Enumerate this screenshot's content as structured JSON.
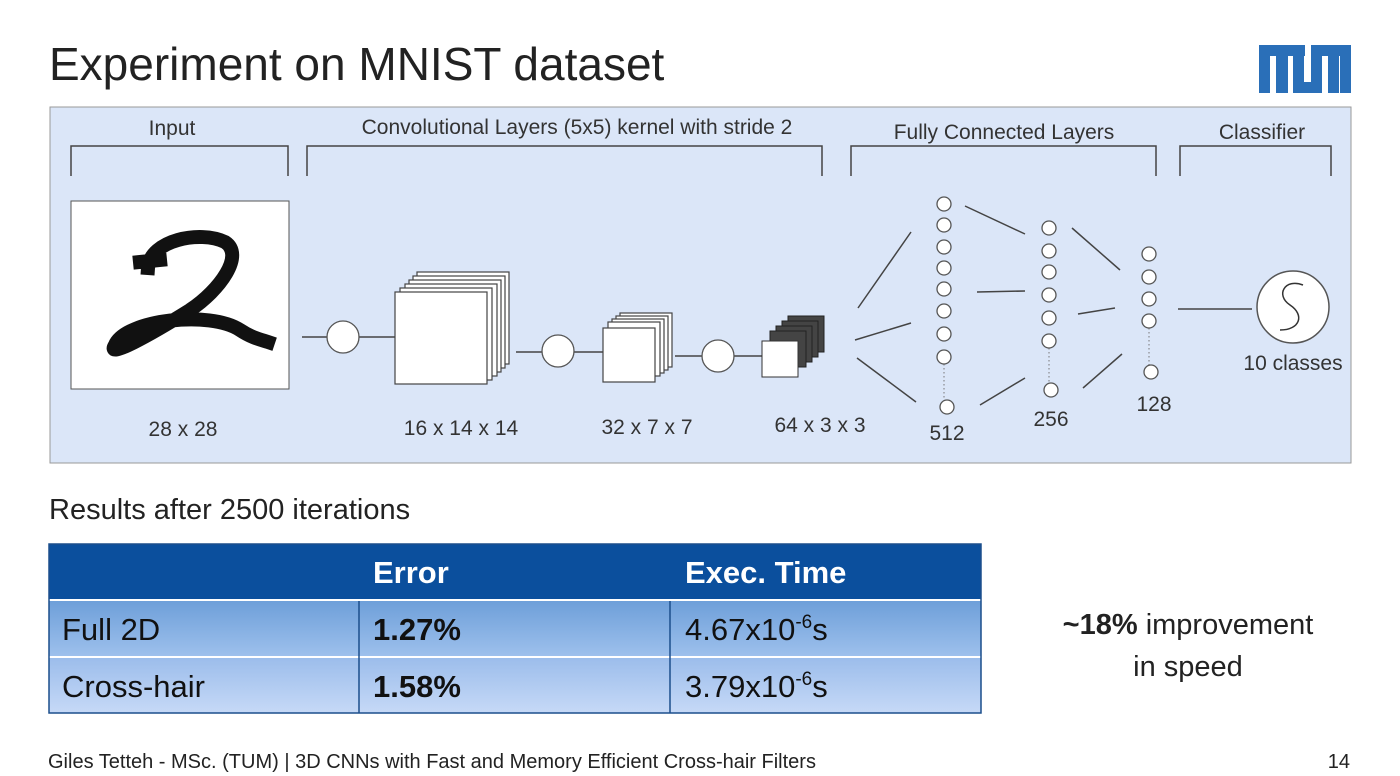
{
  "title": "Experiment on MNIST dataset",
  "diagram": {
    "sections": [
      "Input",
      "Convolutional Layers (5x5) kernel with stride 2",
      "Fully Connected Layers",
      "Classifier"
    ],
    "sizes": [
      "28 x 28",
      "16 x 14 x 14",
      "32 x 7 x 7",
      "64 x 3 x 3",
      "512",
      "256",
      "128"
    ],
    "classifier": "10 classes"
  },
  "results": {
    "heading": "Results after 2500 iterations",
    "table": {
      "header": [
        "Error",
        "Exec. Time"
      ],
      "rows": [
        {
          "name": "Full 2D",
          "error": "1.27%",
          "time": {
            "base": "4.67x10",
            "exponent": "-6",
            "unit": "s"
          }
        },
        {
          "name": "Cross-hair",
          "error": "1.58%",
          "time": {
            "base": "3.79x10",
            "exponent": "-6",
            "unit": "s"
          }
        }
      ]
    }
  },
  "note": {
    "bold": "~18%",
    "text": "improvement",
    "line2": "in speed"
  },
  "footer": {
    "text": "Giles Tetteh - MSc. (TUM) | 3D CNNs with Fast and Memory Efficient Cross-hair Filters",
    "page": "14"
  }
}
